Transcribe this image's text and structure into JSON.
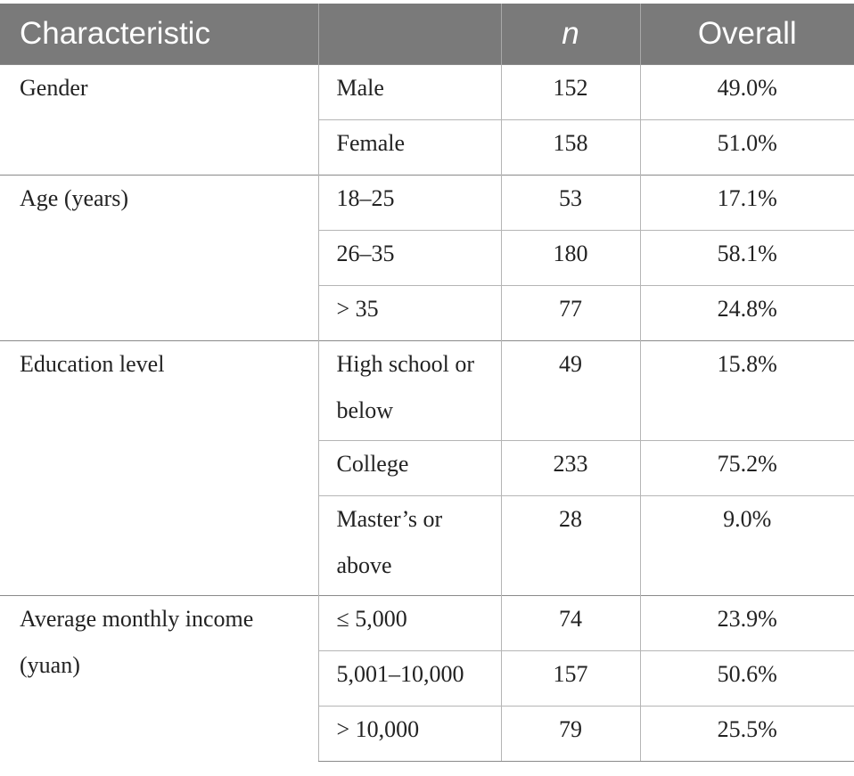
{
  "header": {
    "characteristic": "Characteristic",
    "blank": "",
    "n": "n",
    "overall": "Overall"
  },
  "groups": [
    {
      "label": "Gender",
      "rows": [
        {
          "category": "Male",
          "n": "152",
          "overall": "49.0%"
        },
        {
          "category": "Female",
          "n": "158",
          "overall": "51.0%"
        }
      ]
    },
    {
      "label": "Age (years)",
      "rows": [
        {
          "category": "18–25",
          "n": "53",
          "overall": "17.1%"
        },
        {
          "category": "26–35",
          "n": "180",
          "overall": "58.1%"
        },
        {
          "category": "> 35",
          "n": "77",
          "overall": "24.8%"
        }
      ]
    },
    {
      "label": "Education level",
      "rows": [
        {
          "category": "High school or below",
          "n": "49",
          "overall": "15.8%"
        },
        {
          "category": "College",
          "n": "233",
          "overall": "75.2%"
        },
        {
          "category": "Master’s or above",
          "n": "28",
          "overall": "9.0%"
        }
      ]
    },
    {
      "label": "Average monthly income (yuan)",
      "rows": [
        {
          "category": "≤ 5,000",
          "n": "74",
          "overall": "23.9%"
        },
        {
          "category": "5,001–10,000",
          "n": "157",
          "overall": "50.6%"
        },
        {
          "category": "> 10,000",
          "n": "79",
          "overall": "25.5%"
        }
      ]
    }
  ]
}
